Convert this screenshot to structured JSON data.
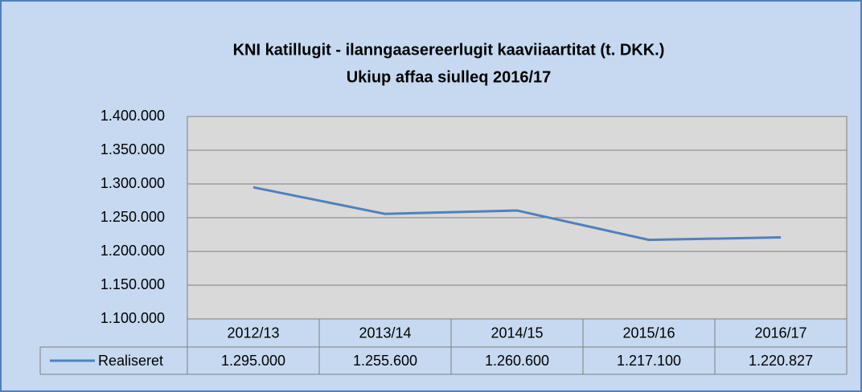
{
  "chart_data": {
    "type": "line",
    "title": "KNI katillugit - ilanngaasereerlugit kaaviiaartitat (t. DKK.)",
    "subtitle": "Ukiup affaa siulleq 2016/17",
    "categories": [
      "2012/13",
      "2013/14",
      "2014/15",
      "2015/16",
      "2016/17"
    ],
    "series": [
      {
        "name": "Realiseret",
        "color": "#4f81bd",
        "values": [
          1295000,
          1255600,
          1260600,
          1217100,
          1220827
        ],
        "value_labels": [
          "1.295.000",
          "1.255.600",
          "1.260.600",
          "1.217.100",
          "1.220.827"
        ]
      }
    ],
    "ylim": [
      1100000,
      1400000
    ],
    "yticks": [
      {
        "value": 1100000,
        "label": "1.100.000"
      },
      {
        "value": 1150000,
        "label": "1.150.000"
      },
      {
        "value": 1200000,
        "label": "1.200.000"
      },
      {
        "value": 1250000,
        "label": "1.250.000"
      },
      {
        "value": 1300000,
        "label": "1.300.000"
      },
      {
        "value": 1350000,
        "label": "1.350.000"
      },
      {
        "value": 1400000,
        "label": "1.400.000"
      }
    ],
    "grid": true
  }
}
